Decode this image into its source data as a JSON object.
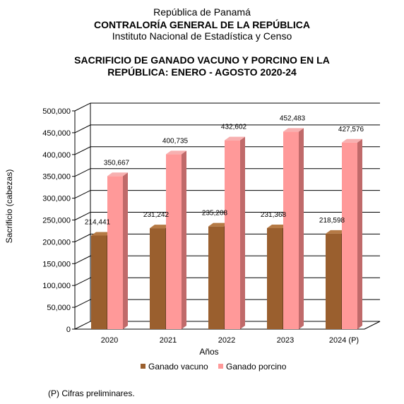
{
  "header": {
    "line1": "República de Panamá",
    "line2": "CONTRALORÍA GENERAL DE LA REPÚBLICA",
    "line3": "Instituto Nacional de Estadística y Censo"
  },
  "chart_data": {
    "type": "bar",
    "title": "SACRIFICIO DE GANADO VACUNO Y PORCINO EN LA REPÚBLICA: ENERO - AGOSTO 2020-24",
    "title_line1": "SACRIFICIO DE GANADO VACUNO Y PORCINO EN LA",
    "title_line2": "REPÚBLICA: ENERO - AGOSTO 2020-24",
    "xlabel": "Años",
    "ylabel": "Sacrificio (cabezas)",
    "ylim": [
      0,
      500000
    ],
    "yticks": [
      0,
      50000,
      100000,
      150000,
      200000,
      250000,
      300000,
      350000,
      400000,
      450000,
      500000
    ],
    "ytick_labels": [
      "0",
      "50,000",
      "100,000",
      "150,000",
      "200,000",
      "250,000",
      "300,000",
      "350,000",
      "400,000",
      "450,000",
      "500,000"
    ],
    "grid": true,
    "legend_position": "bottom",
    "categories": [
      "2020",
      "2021",
      "2022",
      "2023",
      "2024 (P)"
    ],
    "series": [
      {
        "name": "Ganado vacuno",
        "color": "#9A5F2E",
        "values": [
          214441,
          231242,
          235208,
          231368,
          218598
        ],
        "labels": [
          "214,441",
          "231,242",
          "235,208",
          "231,368",
          "218,598"
        ]
      },
      {
        "name": "Ganado porcino",
        "color": "#FF9999",
        "values": [
          350667,
          400735,
          432602,
          452483,
          427576
        ],
        "labels": [
          "350,667",
          "400,735",
          "432,602",
          "452,483",
          "427,576"
        ]
      }
    ]
  },
  "footnote": "(P) Cifras preliminares."
}
